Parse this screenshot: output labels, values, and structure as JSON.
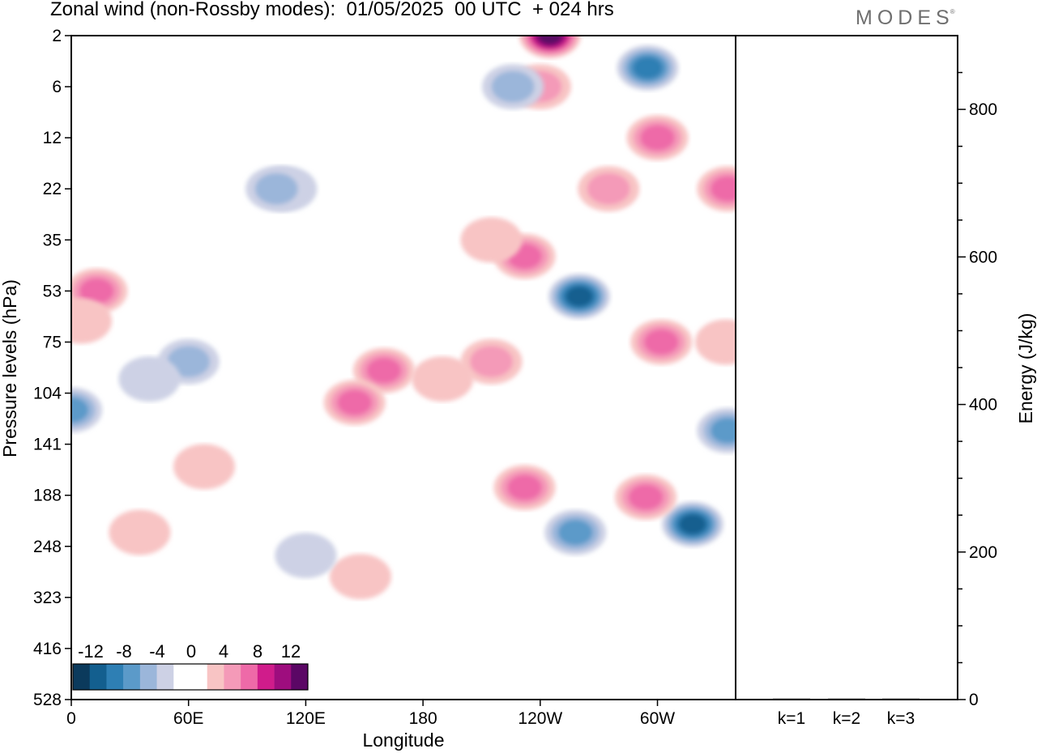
{
  "title": "Zonal wind (non-Rossby modes):  01/05/2025  00 UTC  + 024 hrs",
  "brand": "MODES",
  "brand_mark": "®",
  "colors": {
    "negative": [
      "#0b3a5c",
      "#135f8f",
      "#2e7fb4",
      "#5b9ac9",
      "#9bb6da",
      "#cdd1e5"
    ],
    "zero": "#ffffff",
    "positive": [
      "#f8c4c4",
      "#f49ab8",
      "#ee6aa8",
      "#d01c8b",
      "#9e0d7e",
      "#5b0765"
    ],
    "axis": "#000000"
  },
  "chart_data": [
    {
      "type": "heatmap",
      "title": "Zonal wind (non-Rossby modes):  01/05/2025  00 UTC  + 024 hrs",
      "xlabel": "Longitude",
      "ylabel": "Pressure levels (hPa)",
      "x_ticks": [
        "0",
        "60E",
        "120E",
        "180",
        "120W",
        "60W"
      ],
      "x_range": [
        0,
        340
      ],
      "y_ticks": [
        "2",
        "6",
        "12",
        "22",
        "35",
        "53",
        "75",
        "104",
        "141",
        "188",
        "248",
        "323",
        "416",
        "528"
      ],
      "colorbar_labels": [
        "-12",
        "-8",
        "-4",
        "0",
        "4",
        "8",
        "12"
      ],
      "colorbar_levels": [
        -14,
        -12,
        -10,
        -8,
        -6,
        -4,
        -2,
        2,
        4,
        6,
        8,
        10,
        12,
        14
      ],
      "features": [
        {
          "lon": 245,
          "level": "2",
          "value": 12
        },
        {
          "lon": 240,
          "level": "6",
          "value": 4
        },
        {
          "lon": 295,
          "level": "4",
          "value": -8
        },
        {
          "lon": 226,
          "level": "6",
          "value": -4
        },
        {
          "lon": 300,
          "level": "12",
          "value": 6
        },
        {
          "lon": 275,
          "level": "22",
          "value": 4
        },
        {
          "lon": 336,
          "level": "22",
          "value": 6
        },
        {
          "lon": 232,
          "level": "40",
          "value": 6
        },
        {
          "lon": 215,
          "level": "35",
          "value": 2
        },
        {
          "lon": 110,
          "level": "22",
          "value": -2
        },
        {
          "lon": 105,
          "level": "22",
          "value": -4
        },
        {
          "lon": 13,
          "level": "53",
          "value": 6
        },
        {
          "lon": 5,
          "level": "65",
          "value": 2
        },
        {
          "lon": 60,
          "level": "85",
          "value": -4
        },
        {
          "lon": 0,
          "level": "115",
          "value": -6
        },
        {
          "lon": 40,
          "level": "95",
          "value": -2
        },
        {
          "lon": 160,
          "level": "90",
          "value": 6
        },
        {
          "lon": 190,
          "level": "95",
          "value": 2
        },
        {
          "lon": 215,
          "level": "85",
          "value": 4
        },
        {
          "lon": 145,
          "level": "110",
          "value": 6
        },
        {
          "lon": 260,
          "level": "55",
          "value": -10
        },
        {
          "lon": 302,
          "level": "75",
          "value": 6
        },
        {
          "lon": 335,
          "level": "75",
          "value": 2
        },
        {
          "lon": 336,
          "level": "130",
          "value": -6
        },
        {
          "lon": 318,
          "level": "220",
          "value": -10
        },
        {
          "lon": 232,
          "level": "180",
          "value": 6
        },
        {
          "lon": 258,
          "level": "230",
          "value": -6
        },
        {
          "lon": 294,
          "level": "190",
          "value": 6
        },
        {
          "lon": 148,
          "level": "290",
          "value": 2
        },
        {
          "lon": 120,
          "level": "260",
          "value": -2
        },
        {
          "lon": 68,
          "level": "160",
          "value": 2
        },
        {
          "lon": 35,
          "level": "230",
          "value": 2
        }
      ],
      "legend": "colorbar, lower-left"
    },
    {
      "type": "bar",
      "ylabel": "Energy (J/kg)",
      "categories": [
        "k=1",
        "k=2",
        "k=3"
      ],
      "values": [
        0,
        0,
        0
      ],
      "ylim": [
        0,
        900
      ],
      "y_ticks": [
        "0",
        "200",
        "400",
        "600",
        "800"
      ]
    }
  ]
}
